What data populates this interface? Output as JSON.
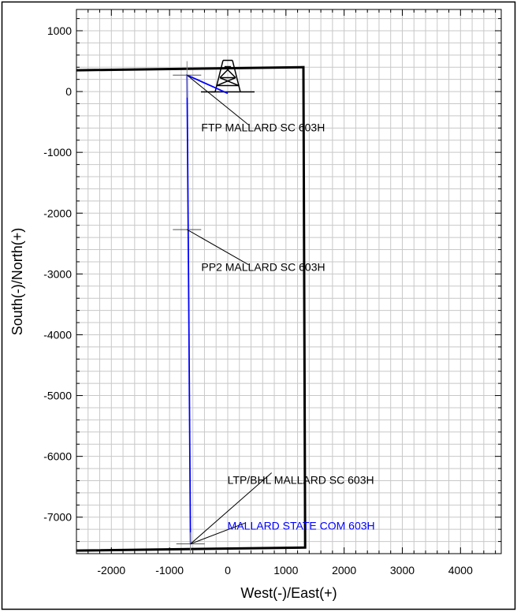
{
  "chart_data": {
    "type": "scatter",
    "title": "",
    "xlabel": "West(-)/East(+)",
    "ylabel": "South(-)/North(+)",
    "xlim": [
      -2600,
      4700
    ],
    "ylim": [
      -7600,
      1350
    ],
    "x_ticks": [
      -2000,
      -1000,
      0,
      1000,
      2000,
      3000,
      4000
    ],
    "y_ticks": [
      1000,
      0,
      -1000,
      -2000,
      -3000,
      -4000,
      -5000,
      -6000,
      -7000
    ],
    "x_tick_labels": [
      "-2000",
      "-1000",
      "0",
      "1000",
      "2000",
      "3000",
      "4000"
    ],
    "y_tick_labels": [
      "1000",
      "0",
      "-1000",
      "-2000",
      "-3000",
      "-4000",
      "-5000",
      "-6000",
      "-7000"
    ],
    "grid": true,
    "colors": {
      "wellpath": "#0000ff",
      "boundary": "#000000",
      "grid": "#c8c8c8",
      "label_blue": "#0000ff"
    },
    "boundary": {
      "name": "lease-boundary",
      "x": [
        -2600,
        1300,
        1330,
        -2600
      ],
      "y": [
        350,
        400,
        -7500,
        -7550
      ]
    },
    "wellpath": {
      "name": "MALLARD STATE COM 603H",
      "x": [
        0,
        -300,
        -700,
        -670,
        -640
      ],
      "y": [
        -30,
        100,
        270,
        -3500,
        -7450
      ]
    },
    "rig": {
      "icon": "drilling-rig-icon",
      "x": 0,
      "y": 150
    },
    "markers": [
      {
        "label": "FTP MALLARD SC 603H",
        "x": -700,
        "y": 270
      },
      {
        "label": "PP2 MALLARD SC 603H",
        "x": -700,
        "y": -2270
      },
      {
        "label": "LTP/BHL MALLARD SC 603H",
        "x": -640,
        "y": -7440
      }
    ],
    "annotations": [
      {
        "text": "FTP MALLARD SC 603H",
        "color": "#000000",
        "ax": -700,
        "ay": 270,
        "tx": 250,
        "ty": -600
      },
      {
        "text": "PP2 MALLARD SC 603H",
        "color": "#000000",
        "ax": -700,
        "ay": -2270,
        "tx": 250,
        "ty": -2900
      },
      {
        "text": "LTP/BHL MALLARD SC 603H",
        "color": "#000000",
        "ax": -640,
        "ay": -7440,
        "tx": 700,
        "ty": -6400
      },
      {
        "text": "MALLARD STATE COM 603H",
        "color": "#0000ff",
        "ax": -640,
        "ay": -7440,
        "tx": 700,
        "ty": -7150
      }
    ]
  }
}
